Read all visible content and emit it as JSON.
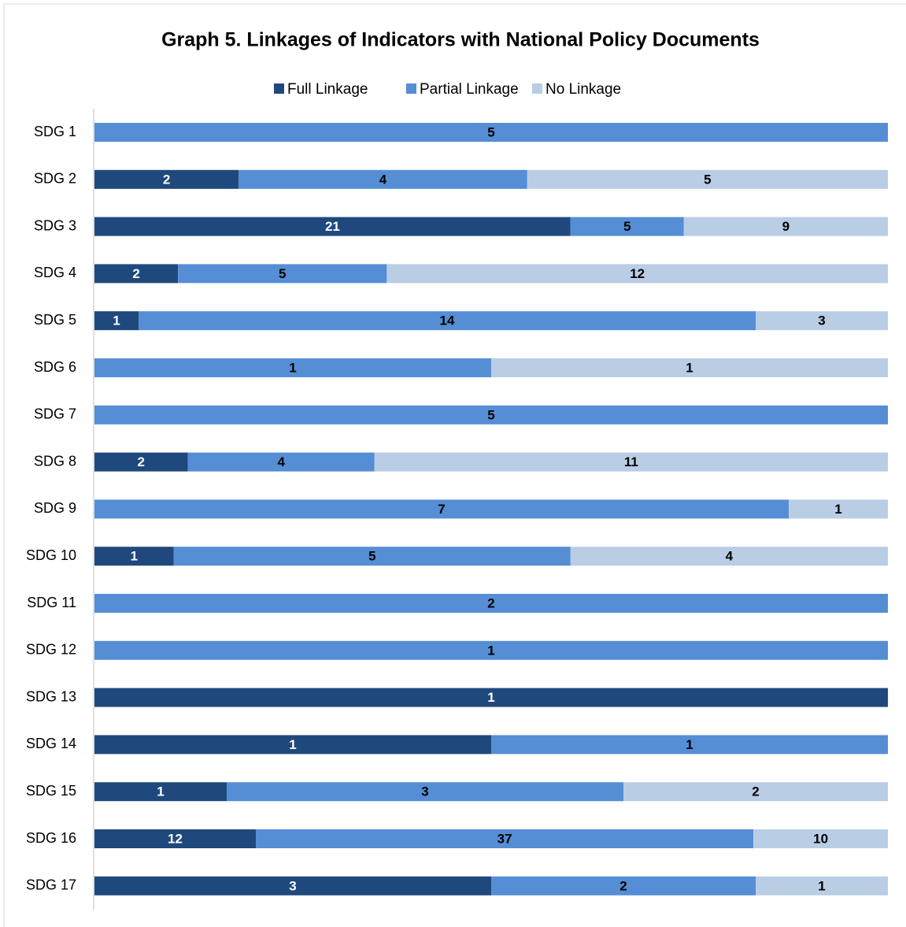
{
  "chart_data": {
    "type": "stacked-bar-100",
    "orientation": "horizontal",
    "title": "Graph 5. Linkages of Indicators with National Policy Documents",
    "categories": [
      "SDG 1",
      "SDG 2",
      "SDG 3",
      "SDG 4",
      "SDG 5",
      "SDG 6",
      "SDG 7",
      "SDG 8",
      "SDG 9",
      "SDG 10",
      "SDG 11",
      "SDG 12",
      "SDG 13",
      "SDG 14",
      "SDG 15",
      "SDG 16",
      "SDG 17"
    ],
    "series": [
      {
        "name": "Full Linkage",
        "color": "#1f497d",
        "label_color": "#ffffff",
        "values": [
          null,
          2,
          21,
          2,
          1,
          null,
          null,
          2,
          null,
          1,
          null,
          null,
          1,
          1,
          1,
          12,
          3
        ]
      },
      {
        "name": "Partial Linkage",
        "color": "#558ed5",
        "label_color": "#000000",
        "values": [
          5,
          4,
          5,
          5,
          14,
          1,
          5,
          4,
          7,
          5,
          2,
          1,
          null,
          1,
          3,
          37,
          2
        ]
      },
      {
        "name": "No Linkage",
        "color": "#b9cde5",
        "label_color": "#000000",
        "values": [
          null,
          5,
          9,
          12,
          3,
          1,
          null,
          11,
          1,
          4,
          null,
          null,
          null,
          null,
          2,
          10,
          1
        ]
      }
    ],
    "legend": "top"
  }
}
